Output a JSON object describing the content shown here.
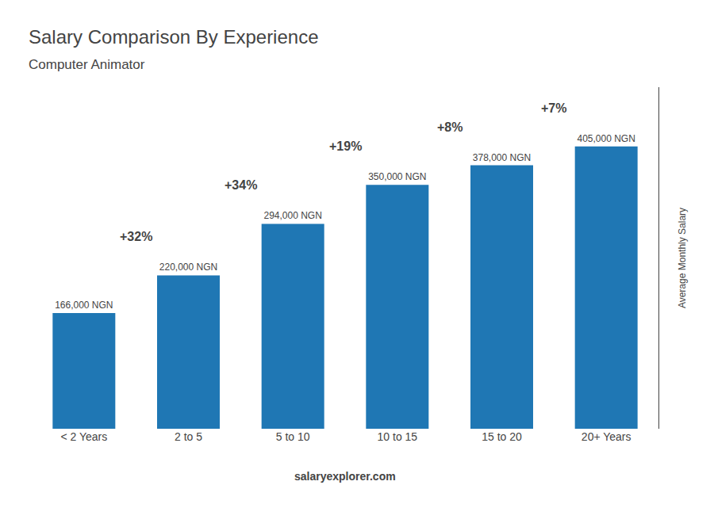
{
  "chart_data": {
    "type": "bar",
    "title": "Salary Comparison By Experience",
    "subtitle": "Computer Animator",
    "ylabel": "Average Monthly Salary",
    "categories": [
      "< 2 Years",
      "2 to 5",
      "5 to 10",
      "10 to 15",
      "15 to 20",
      "20+ Years"
    ],
    "values": [
      166000,
      220000,
      294000,
      350000,
      378000,
      405000
    ],
    "value_labels": [
      "166,000 NGN",
      "220,000 NGN",
      "294,000 NGN",
      "350,000 NGN",
      "378,000 NGN",
      "405,000 NGN"
    ],
    "data_labels": true,
    "annotations": [
      "+32%",
      "+34%",
      "+19%",
      "+8%",
      "+7%"
    ],
    "watermark": "salaryexplorer.com",
    "ylim": [
      0,
      490000
    ],
    "tick_labels": "x",
    "grid": false
  }
}
